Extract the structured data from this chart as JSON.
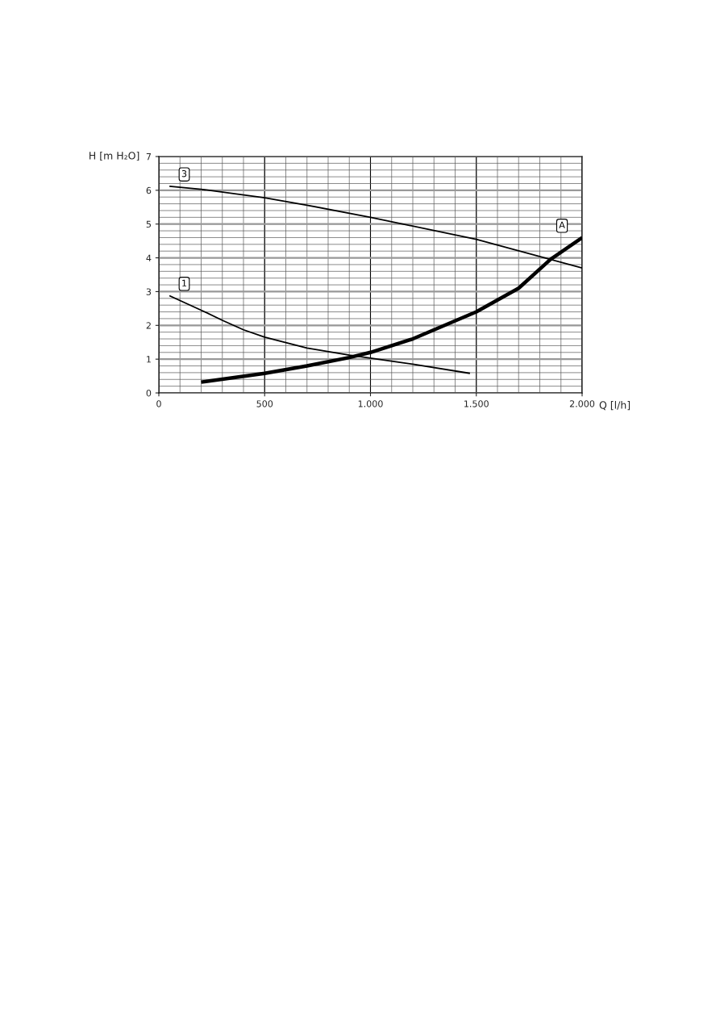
{
  "chart_data": {
    "type": "line",
    "xlabel": "Q [l/h]",
    "ylabel": "H [m H₂O]",
    "xlim": [
      0,
      2000
    ],
    "ylim": [
      0,
      7
    ],
    "xticks": [
      0,
      500,
      {
        "value": 1000,
        "label": "1.000"
      },
      {
        "value": 1500,
        "label": "1.500"
      },
      {
        "value": 2000,
        "label": "2.000"
      }
    ],
    "yticks": [
      0,
      1,
      2,
      3,
      4,
      5,
      6,
      7
    ],
    "grid": true,
    "legend": false,
    "marker": "none",
    "line_style": "solid",
    "series": [
      {
        "name": "3",
        "color": "#000000",
        "x": [
          50,
          200,
          500,
          700,
          1000,
          1500,
          2000
        ],
        "values": [
          6.12,
          6.03,
          5.78,
          5.56,
          5.2,
          4.55,
          3.7
        ]
      },
      {
        "name": "1",
        "color": "#000000",
        "x": [
          50,
          200,
          300,
          400,
          500,
          700,
          900,
          1000,
          1200,
          1470
        ],
        "values": [
          2.88,
          2.45,
          2.15,
          1.87,
          1.65,
          1.33,
          1.12,
          1.03,
          0.85,
          0.58
        ]
      },
      {
        "name": "A",
        "color": "#000000",
        "x": [
          200,
          500,
          700,
          900,
          1000,
          1200,
          1500,
          1700,
          1850,
          2000
        ],
        "values": [
          0.32,
          0.58,
          0.8,
          1.05,
          1.2,
          1.6,
          2.4,
          3.1,
          3.95,
          4.6
        ]
      }
    ]
  }
}
